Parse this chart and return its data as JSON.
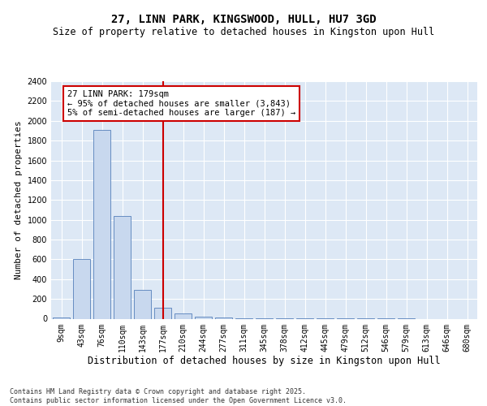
{
  "title": "27, LINN PARK, KINGSWOOD, HULL, HU7 3GD",
  "subtitle": "Size of property relative to detached houses in Kingston upon Hull",
  "xlabel": "Distribution of detached houses by size in Kingston upon Hull",
  "ylabel": "Number of detached properties",
  "categories": [
    "9sqm",
    "43sqm",
    "76sqm",
    "110sqm",
    "143sqm",
    "177sqm",
    "210sqm",
    "244sqm",
    "277sqm",
    "311sqm",
    "345sqm",
    "378sqm",
    "412sqm",
    "445sqm",
    "479sqm",
    "512sqm",
    "546sqm",
    "579sqm",
    "613sqm",
    "646sqm",
    "680sqm"
  ],
  "values": [
    15,
    600,
    1910,
    1040,
    290,
    110,
    50,
    20,
    15,
    8,
    5,
    4,
    3,
    2,
    2,
    1,
    1,
    1,
    0,
    0,
    0
  ],
  "bar_color": "#c8d8ee",
  "bar_edge_color": "#5580bb",
  "bar_width": 0.85,
  "vline_x": 5,
  "vline_color": "#cc0000",
  "annotation_text": "27 LINN PARK: 179sqm\n← 95% of detached houses are smaller (3,843)\n5% of semi-detached houses are larger (187) →",
  "annotation_box_color": "#ffffff",
  "annotation_box_edge": "#cc0000",
  "ylim": [
    0,
    2400
  ],
  "yticks": [
    0,
    200,
    400,
    600,
    800,
    1000,
    1200,
    1400,
    1600,
    1800,
    2000,
    2200,
    2400
  ],
  "bg_color": "#dde8f5",
  "grid_color": "#ffffff",
  "fig_bg_color": "#ffffff",
  "footer_text": "Contains HM Land Registry data © Crown copyright and database right 2025.\nContains public sector information licensed under the Open Government Licence v3.0.",
  "title_fontsize": 10,
  "subtitle_fontsize": 8.5,
  "xlabel_fontsize": 8.5,
  "ylabel_fontsize": 8,
  "tick_fontsize": 7,
  "annotation_fontsize": 7.5
}
